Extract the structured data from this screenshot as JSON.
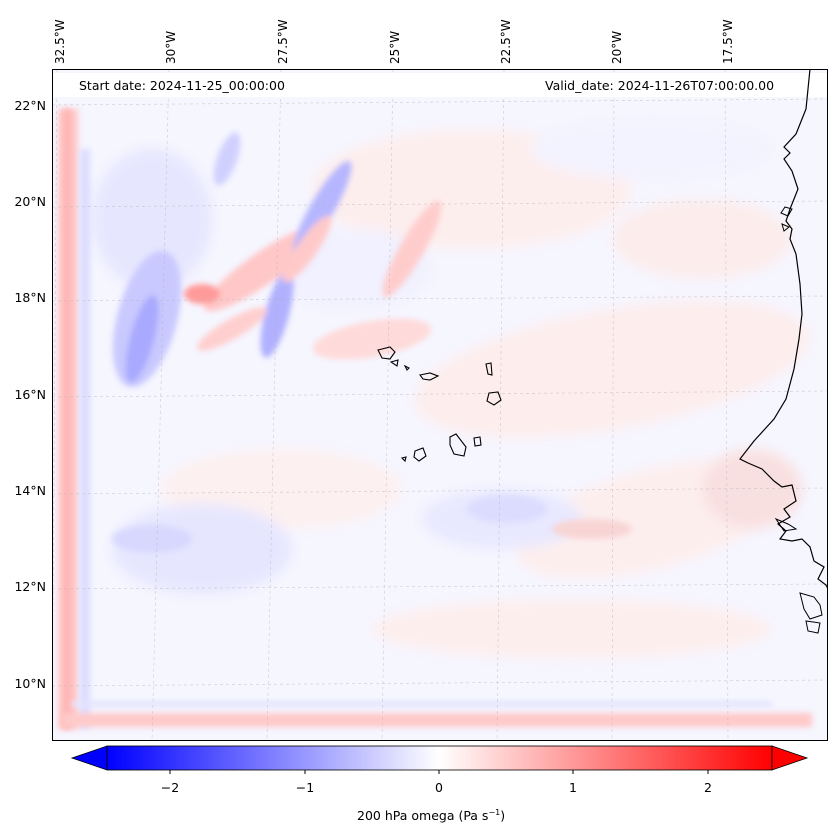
{
  "map": {
    "start_label": "Start date: 2024-11-25_00:00:00",
    "valid_label": "Valid_date: 2024-11-26T07:00:00.00",
    "longitude_labels": [
      "32.5°W",
      "30°W",
      "27.5°W",
      "25°W",
      "22.5°W",
      "20°W",
      "17.5°W"
    ],
    "latitude_labels": [
      "22°N",
      "20°N",
      "18°N",
      "16°N",
      "14°N",
      "12°N",
      "10°N"
    ],
    "field": "200 hPa omega",
    "units": "Pa s⁻¹"
  },
  "colorbar": {
    "label_main": "200 hPa omega (Pa s",
    "label_sup": "−1",
    "label_end": ")",
    "ticks": [
      "−2",
      "−1",
      "0",
      "1",
      "2"
    ],
    "min_value": -2.6,
    "max_value": 2.6,
    "low_color": "#0000ff",
    "mid_color": "#ffffff",
    "high_color": "#ff0000"
  }
}
